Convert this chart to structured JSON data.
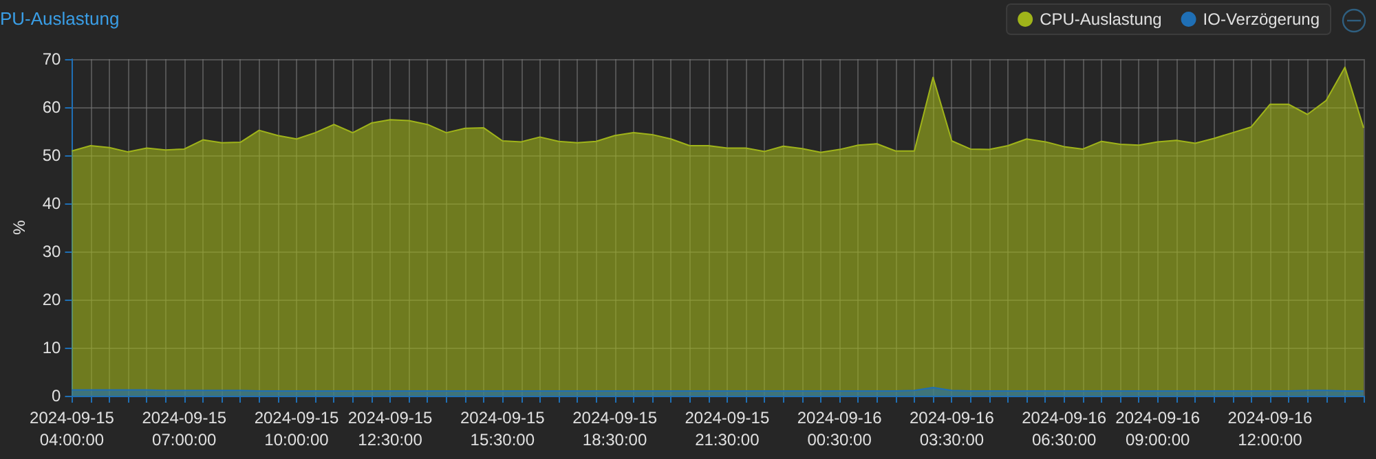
{
  "chart_data": {
    "type": "area",
    "title": "PU-Auslastung",
    "ylabel": "%",
    "x": [
      "2024-09-15T04:00",
      "2024-09-15T04:30",
      "2024-09-15T05:00",
      "2024-09-15T05:30",
      "2024-09-15T06:00",
      "2024-09-15T06:30",
      "2024-09-15T07:00",
      "2024-09-15T07:30",
      "2024-09-15T08:00",
      "2024-09-15T08:30",
      "2024-09-15T09:00",
      "2024-09-15T09:30",
      "2024-09-15T10:00",
      "2024-09-15T10:30",
      "2024-09-15T11:00",
      "2024-09-15T11:30",
      "2024-09-15T12:00",
      "2024-09-15T12:30",
      "2024-09-15T13:00",
      "2024-09-15T13:30",
      "2024-09-15T14:00",
      "2024-09-15T14:30",
      "2024-09-15T15:00",
      "2024-09-15T15:30",
      "2024-09-15T16:00",
      "2024-09-15T16:30",
      "2024-09-15T17:00",
      "2024-09-15T17:30",
      "2024-09-15T18:00",
      "2024-09-15T18:30",
      "2024-09-15T19:00",
      "2024-09-15T19:30",
      "2024-09-15T20:00",
      "2024-09-15T20:30",
      "2024-09-15T21:00",
      "2024-09-15T21:30",
      "2024-09-15T22:00",
      "2024-09-15T22:30",
      "2024-09-15T23:00",
      "2024-09-15T23:30",
      "2024-09-16T00:00",
      "2024-09-16T00:30",
      "2024-09-16T01:00",
      "2024-09-16T01:30",
      "2024-09-16T02:00",
      "2024-09-16T02:30",
      "2024-09-16T03:00",
      "2024-09-16T03:30",
      "2024-09-16T04:00",
      "2024-09-16T04:30",
      "2024-09-16T05:00",
      "2024-09-16T05:30",
      "2024-09-16T06:00",
      "2024-09-16T06:30",
      "2024-09-16T07:00",
      "2024-09-16T07:30",
      "2024-09-16T08:00",
      "2024-09-16T08:30",
      "2024-09-16T09:00",
      "2024-09-16T09:30",
      "2024-09-16T10:00",
      "2024-09-16T10:30",
      "2024-09-16T11:00",
      "2024-09-16T11:30",
      "2024-09-16T12:00",
      "2024-09-16T12:30",
      "2024-09-16T13:00",
      "2024-09-16T13:30",
      "2024-09-16T14:00",
      "2024-09-16T14:30"
    ],
    "series": [
      {
        "name": "CPU-Auslastung",
        "color": "#a0b41a",
        "values": [
          50.9,
          52.0,
          51.6,
          50.7,
          51.5,
          51.1,
          51.3,
          53.2,
          52.6,
          52.7,
          55.2,
          54.1,
          53.4,
          54.7,
          56.4,
          54.7,
          56.7,
          57.4,
          57.2,
          56.4,
          54.7,
          55.6,
          55.7,
          53.0,
          52.8,
          53.8,
          52.9,
          52.6,
          52.9,
          54.1,
          54.7,
          54.3,
          53.4,
          52.0,
          52.0,
          51.5,
          51.5,
          50.8,
          51.9,
          51.4,
          50.6,
          51.2,
          52.1,
          52.4,
          50.9,
          50.9,
          66.2,
          53.0,
          51.3,
          51.2,
          52.0,
          53.4,
          52.8,
          51.8,
          51.3,
          52.9,
          52.3,
          52.1,
          52.8,
          53.1,
          52.5,
          53.5,
          54.7,
          55.9,
          60.6,
          60.6,
          58.5,
          61.4,
          68.3,
          55.7
        ]
      },
      {
        "name": "IO-Verzögerung",
        "color": "#1f6fb5",
        "values": [
          1.2,
          1.2,
          1.2,
          1.2,
          1.2,
          1.1,
          1.1,
          1.1,
          1.1,
          1.1,
          1.0,
          1.0,
          1.0,
          1.0,
          1.0,
          1.0,
          1.0,
          1.0,
          1.0,
          1.0,
          1.0,
          1.0,
          1.0,
          1.0,
          1.0,
          1.0,
          1.0,
          1.0,
          1.0,
          1.0,
          1.0,
          1.0,
          1.0,
          1.0,
          1.0,
          1.0,
          1.0,
          1.0,
          1.0,
          1.0,
          1.0,
          1.0,
          1.0,
          1.0,
          1.0,
          1.1,
          1.7,
          1.1,
          1.0,
          1.0,
          1.0,
          1.0,
          1.0,
          1.0,
          1.0,
          1.0,
          1.0,
          1.0,
          1.0,
          1.0,
          1.0,
          1.0,
          1.0,
          1.0,
          1.0,
          1.0,
          1.1,
          1.1,
          1.0,
          1.0
        ]
      }
    ],
    "xlim": [
      "2024-09-15T04:00",
      "2024-09-16T14:30"
    ],
    "xticks": [
      {
        "value": "2024-09-15T04:00",
        "label": "2024-09-15\n04:00:00"
      },
      {
        "value": "2024-09-15T07:00",
        "label": "2024-09-15\n07:00:00"
      },
      {
        "value": "2024-09-15T10:00",
        "label": "2024-09-15\n10:00:00"
      },
      {
        "value": "2024-09-15T12:30",
        "label": "2024-09-15\n12:30:00"
      },
      {
        "value": "2024-09-15T15:30",
        "label": "2024-09-15\n15:30:00"
      },
      {
        "value": "2024-09-15T18:30",
        "label": "2024-09-15\n18:30:00"
      },
      {
        "value": "2024-09-15T21:30",
        "label": "2024-09-15\n21:30:00"
      },
      {
        "value": "2024-09-16T00:30",
        "label": "2024-09-16\n00:30:00"
      },
      {
        "value": "2024-09-16T03:30",
        "label": "2024-09-16\n03:30:00"
      },
      {
        "value": "2024-09-16T06:30",
        "label": "2024-09-16\n06:30:00"
      },
      {
        "value": "2024-09-16T09:00",
        "label": "2024-09-16\n09:00:00"
      },
      {
        "value": "2024-09-16T12:00",
        "label": "2024-09-16\n12:00:00"
      }
    ],
    "ylim": [
      0,
      70
    ],
    "yticks": [
      0,
      10,
      20,
      30,
      40,
      50,
      60,
      70
    ],
    "grid": true,
    "legend": "top right",
    "marker": "none",
    "line_style": "solid"
  }
}
